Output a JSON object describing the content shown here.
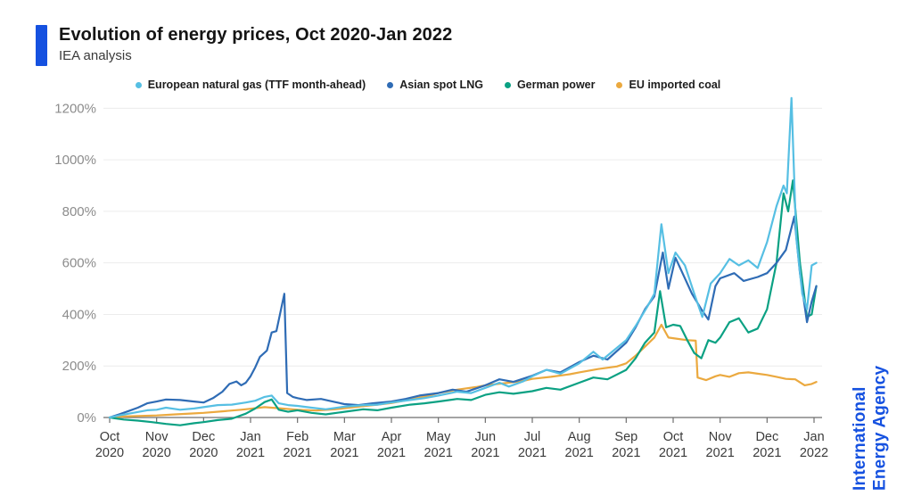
{
  "header": {
    "title": "Evolution of energy prices, Oct 2020-Jan 2022",
    "subtitle": "IEA analysis",
    "accent_color": "#1551e0"
  },
  "watermark": {
    "line1": "International",
    "line2": "Energy Agency",
    "color": "#1551e0"
  },
  "chart_data": {
    "type": "line",
    "title": "Evolution of energy prices, Oct 2020-Jan 2022",
    "subtitle": "IEA analysis",
    "unit": "%",
    "grid": "horizontal",
    "legend_position": "top",
    "y_axis": {
      "tick_values": [
        0,
        200,
        400,
        600,
        800,
        1000,
        1200
      ],
      "tick_suffix": "%",
      "range": [
        -40,
        1260
      ]
    },
    "x_axis": {
      "tick_labels": [
        [
          "Oct",
          "2020"
        ],
        [
          "Nov",
          "2020"
        ],
        [
          "Dec",
          "2020"
        ],
        [
          "Jan",
          "2021"
        ],
        [
          "Feb",
          "2021"
        ],
        [
          "Mar",
          "2021"
        ],
        [
          "Apr",
          "2021"
        ],
        [
          "May",
          "2021"
        ],
        [
          "Jun",
          "2021"
        ],
        [
          "Jul",
          "2021"
        ],
        [
          "Aug",
          "2021"
        ],
        [
          "Sep",
          "2021"
        ],
        [
          "Oct",
          "2021"
        ],
        [
          "Nov",
          "2021"
        ],
        [
          "Dec",
          "2021"
        ],
        [
          "Jan",
          "2022"
        ]
      ]
    },
    "series": [
      {
        "name": "European natural gas (TTF month-ahead)",
        "color": "#56bfe3",
        "points": [
          [
            0,
            0
          ],
          [
            0.2,
            8
          ],
          [
            0.5,
            18
          ],
          [
            0.8,
            28
          ],
          [
            1,
            30
          ],
          [
            1.2,
            38
          ],
          [
            1.5,
            30
          ],
          [
            1.8,
            35
          ],
          [
            2,
            40
          ],
          [
            2.3,
            48
          ],
          [
            2.6,
            50
          ],
          [
            2.9,
            58
          ],
          [
            3.1,
            65
          ],
          [
            3.3,
            80
          ],
          [
            3.45,
            85
          ],
          [
            3.6,
            55
          ],
          [
            3.8,
            48
          ],
          [
            4,
            45
          ],
          [
            4.3,
            38
          ],
          [
            4.6,
            32
          ],
          [
            5,
            42
          ],
          [
            5.4,
            48
          ],
          [
            5.7,
            50
          ],
          [
            6,
            58
          ],
          [
            6.4,
            68
          ],
          [
            6.7,
            75
          ],
          [
            7,
            85
          ],
          [
            7.4,
            100
          ],
          [
            7.7,
            95
          ],
          [
            8,
            115
          ],
          [
            8.3,
            135
          ],
          [
            8.5,
            120
          ],
          [
            8.8,
            140
          ],
          [
            9,
            160
          ],
          [
            9.3,
            185
          ],
          [
            9.6,
            170
          ],
          [
            10,
            210
          ],
          [
            10.3,
            255
          ],
          [
            10.5,
            225
          ],
          [
            10.8,
            270
          ],
          [
            11,
            300
          ],
          [
            11.2,
            355
          ],
          [
            11.45,
            430
          ],
          [
            11.6,
            480
          ],
          [
            11.75,
            750
          ],
          [
            11.9,
            560
          ],
          [
            12.05,
            640
          ],
          [
            12.25,
            590
          ],
          [
            12.45,
            480
          ],
          [
            12.62,
            390
          ],
          [
            12.8,
            520
          ],
          [
            13,
            560
          ],
          [
            13.2,
            615
          ],
          [
            13.4,
            590
          ],
          [
            13.6,
            610
          ],
          [
            13.8,
            580
          ],
          [
            14,
            680
          ],
          [
            14.2,
            820
          ],
          [
            14.35,
            900
          ],
          [
            14.42,
            870
          ],
          [
            14.52,
            1240
          ],
          [
            14.62,
            700
          ],
          [
            14.75,
            480
          ],
          [
            14.85,
            420
          ],
          [
            14.95,
            590
          ],
          [
            15.05,
            600
          ]
        ]
      },
      {
        "name": "Asian spot LNG",
        "color": "#2f6cb5",
        "points": [
          [
            0,
            0
          ],
          [
            0.2,
            12
          ],
          [
            0.4,
            25
          ],
          [
            0.6,
            38
          ],
          [
            0.8,
            55
          ],
          [
            1,
            62
          ],
          [
            1.2,
            70
          ],
          [
            1.5,
            68
          ],
          [
            1.8,
            62
          ],
          [
            2,
            58
          ],
          [
            2.2,
            75
          ],
          [
            2.4,
            100
          ],
          [
            2.55,
            130
          ],
          [
            2.7,
            140
          ],
          [
            2.8,
            125
          ],
          [
            2.9,
            135
          ],
          [
            3,
            160
          ],
          [
            3.1,
            195
          ],
          [
            3.2,
            235
          ],
          [
            3.35,
            260
          ],
          [
            3.45,
            330
          ],
          [
            3.55,
            335
          ],
          [
            3.65,
            420
          ],
          [
            3.72,
            480
          ],
          [
            3.78,
            95
          ],
          [
            3.9,
            80
          ],
          [
            4,
            75
          ],
          [
            4.2,
            68
          ],
          [
            4.5,
            72
          ],
          [
            4.8,
            60
          ],
          [
            5,
            52
          ],
          [
            5.3,
            48
          ],
          [
            5.6,
            55
          ],
          [
            6,
            62
          ],
          [
            6.3,
            72
          ],
          [
            6.6,
            85
          ],
          [
            7,
            95
          ],
          [
            7.3,
            108
          ],
          [
            7.6,
            100
          ],
          [
            8,
            125
          ],
          [
            8.3,
            148
          ],
          [
            8.6,
            138
          ],
          [
            9,
            162
          ],
          [
            9.3,
            185
          ],
          [
            9.6,
            175
          ],
          [
            10,
            215
          ],
          [
            10.3,
            240
          ],
          [
            10.6,
            225
          ],
          [
            11,
            290
          ],
          [
            11.2,
            350
          ],
          [
            11.4,
            420
          ],
          [
            11.6,
            470
          ],
          [
            11.78,
            640
          ],
          [
            11.9,
            500
          ],
          [
            12.05,
            620
          ],
          [
            12.2,
            560
          ],
          [
            12.4,
            480
          ],
          [
            12.6,
            420
          ],
          [
            12.75,
            380
          ],
          [
            12.9,
            510
          ],
          [
            13,
            540
          ],
          [
            13.3,
            560
          ],
          [
            13.5,
            530
          ],
          [
            13.8,
            545
          ],
          [
            14,
            560
          ],
          [
            14.2,
            600
          ],
          [
            14.4,
            650
          ],
          [
            14.58,
            780
          ],
          [
            14.7,
            560
          ],
          [
            14.85,
            370
          ],
          [
            14.95,
            450
          ],
          [
            15.05,
            510
          ]
        ]
      },
      {
        "name": "German power",
        "color": "#0ba183",
        "points": [
          [
            0,
            0
          ],
          [
            0.3,
            -8
          ],
          [
            0.6,
            -12
          ],
          [
            0.9,
            -18
          ],
          [
            1.2,
            -25
          ],
          [
            1.5,
            -30
          ],
          [
            1.8,
            -22
          ],
          [
            2,
            -18
          ],
          [
            2.3,
            -10
          ],
          [
            2.6,
            -5
          ],
          [
            2.9,
            15
          ],
          [
            3.1,
            35
          ],
          [
            3.3,
            60
          ],
          [
            3.45,
            70
          ],
          [
            3.6,
            30
          ],
          [
            3.8,
            22
          ],
          [
            4,
            28
          ],
          [
            4.3,
            18
          ],
          [
            4.6,
            12
          ],
          [
            5,
            22
          ],
          [
            5.4,
            32
          ],
          [
            5.7,
            28
          ],
          [
            6,
            38
          ],
          [
            6.4,
            50
          ],
          [
            6.7,
            55
          ],
          [
            7,
            62
          ],
          [
            7.4,
            72
          ],
          [
            7.7,
            68
          ],
          [
            8,
            88
          ],
          [
            8.3,
            98
          ],
          [
            8.6,
            92
          ],
          [
            9,
            102
          ],
          [
            9.3,
            115
          ],
          [
            9.6,
            108
          ],
          [
            10,
            135
          ],
          [
            10.3,
            155
          ],
          [
            10.6,
            148
          ],
          [
            11,
            185
          ],
          [
            11.2,
            230
          ],
          [
            11.4,
            290
          ],
          [
            11.6,
            330
          ],
          [
            11.72,
            490
          ],
          [
            11.85,
            350
          ],
          [
            12,
            360
          ],
          [
            12.15,
            355
          ],
          [
            12.3,
            300
          ],
          [
            12.45,
            250
          ],
          [
            12.6,
            230
          ],
          [
            12.75,
            300
          ],
          [
            12.9,
            290
          ],
          [
            13,
            310
          ],
          [
            13.2,
            370
          ],
          [
            13.4,
            385
          ],
          [
            13.6,
            330
          ],
          [
            13.8,
            345
          ],
          [
            14,
            420
          ],
          [
            14.2,
            600
          ],
          [
            14.35,
            870
          ],
          [
            14.45,
            800
          ],
          [
            14.55,
            920
          ],
          [
            14.7,
            600
          ],
          [
            14.85,
            390
          ],
          [
            14.95,
            400
          ],
          [
            15.05,
            510
          ]
        ]
      },
      {
        "name": "EU imported coal",
        "color": "#eba93f",
        "points": [
          [
            0,
            0
          ],
          [
            0.3,
            4
          ],
          [
            0.6,
            6
          ],
          [
            1,
            8
          ],
          [
            1.4,
            12
          ],
          [
            1.8,
            16
          ],
          [
            2,
            18
          ],
          [
            2.4,
            24
          ],
          [
            2.8,
            30
          ],
          [
            3,
            34
          ],
          [
            3.3,
            40
          ],
          [
            3.6,
            36
          ],
          [
            4,
            30
          ],
          [
            4.4,
            27
          ],
          [
            4.8,
            32
          ],
          [
            5,
            36
          ],
          [
            5.4,
            44
          ],
          [
            5.7,
            50
          ],
          [
            6,
            56
          ],
          [
            6.4,
            70
          ],
          [
            6.8,
            85
          ],
          [
            7,
            95
          ],
          [
            7.4,
            108
          ],
          [
            7.8,
            118
          ],
          [
            8,
            125
          ],
          [
            8.4,
            133
          ],
          [
            8.8,
            142
          ],
          [
            9,
            150
          ],
          [
            9.4,
            158
          ],
          [
            9.8,
            168
          ],
          [
            10,
            175
          ],
          [
            10.4,
            188
          ],
          [
            10.8,
            198
          ],
          [
            11,
            210
          ],
          [
            11.2,
            240
          ],
          [
            11.4,
            275
          ],
          [
            11.6,
            310
          ],
          [
            11.75,
            360
          ],
          [
            11.9,
            310
          ],
          [
            12.1,
            305
          ],
          [
            12.3,
            300
          ],
          [
            12.48,
            298
          ],
          [
            12.52,
            155
          ],
          [
            12.7,
            145
          ],
          [
            12.9,
            160
          ],
          [
            13,
            165
          ],
          [
            13.2,
            158
          ],
          [
            13.4,
            172
          ],
          [
            13.6,
            175
          ],
          [
            13.8,
            170
          ],
          [
            14,
            165
          ],
          [
            14.2,
            158
          ],
          [
            14.4,
            150
          ],
          [
            14.6,
            148
          ],
          [
            14.8,
            125
          ],
          [
            14.95,
            130
          ],
          [
            15.05,
            138
          ]
        ]
      }
    ]
  }
}
